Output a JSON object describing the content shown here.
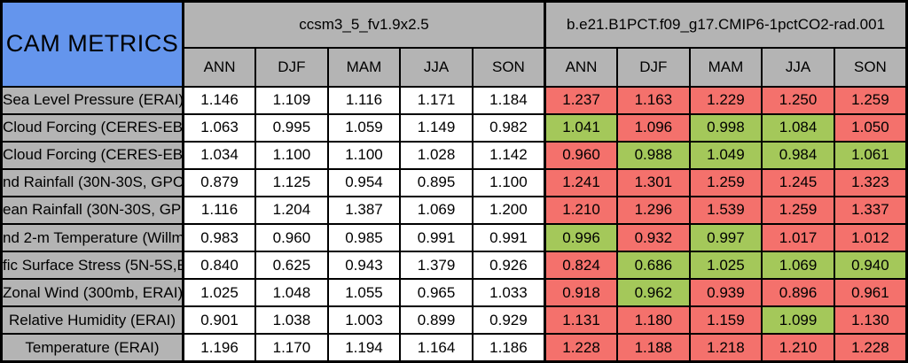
{
  "table": {
    "title": "CAM METRICS",
    "models": [
      {
        "name": "ccsm3_5_fv1.9x2.5"
      },
      {
        "name": "b.e21.B1PCT.f09_g17.CMIP6-1pctCO2-rad.001"
      }
    ],
    "seasons": [
      "ANN",
      "DJF",
      "MAM",
      "JJA",
      "SON"
    ],
    "rows": [
      {
        "label": "Sea Level Pressure (ERAI)",
        "control": [
          "1.146",
          "1.109",
          "1.116",
          "1.171",
          "1.184"
        ],
        "test": [
          "1.237",
          "1.163",
          "1.229",
          "1.250",
          "1.259"
        ],
        "test_colors": [
          "red",
          "red",
          "red",
          "red",
          "red"
        ]
      },
      {
        "label": "Cloud Forcing (CERES-EB",
        "control": [
          "1.063",
          "0.995",
          "1.059",
          "1.149",
          "0.982"
        ],
        "test": [
          "1.041",
          "1.096",
          "0.998",
          "1.084",
          "1.050"
        ],
        "test_colors": [
          "green",
          "red",
          "green",
          "green",
          "red"
        ]
      },
      {
        "label": "Cloud Forcing (CERES-EB",
        "control": [
          "1.034",
          "1.100",
          "1.100",
          "1.028",
          "1.142"
        ],
        "test": [
          "0.960",
          "0.988",
          "1.049",
          "0.984",
          "1.061"
        ],
        "test_colors": [
          "red",
          "green",
          "green",
          "green",
          "green"
        ]
      },
      {
        "label": "nd Rainfall (30N-30S, GPC",
        "control": [
          "0.879",
          "1.125",
          "0.954",
          "0.895",
          "1.100"
        ],
        "test": [
          "1.241",
          "1.301",
          "1.259",
          "1.245",
          "1.323"
        ],
        "test_colors": [
          "red",
          "red",
          "red",
          "red",
          "red"
        ]
      },
      {
        "label": "ean Rainfall (30N-30S, GPC",
        "control": [
          "1.116",
          "1.204",
          "1.387",
          "1.069",
          "1.200"
        ],
        "test": [
          "1.210",
          "1.296",
          "1.539",
          "1.259",
          "1.337"
        ],
        "test_colors": [
          "red",
          "red",
          "red",
          "red",
          "red"
        ]
      },
      {
        "label": "nd 2-m Temperature (Willmo",
        "control": [
          "0.983",
          "0.960",
          "0.985",
          "0.991",
          "0.991"
        ],
        "test": [
          "0.996",
          "0.932",
          "0.997",
          "1.017",
          "1.012"
        ],
        "test_colors": [
          "green",
          "red",
          "green",
          "red",
          "red"
        ]
      },
      {
        "label": "fic Surface Stress (5N-5S,E",
        "control": [
          "0.840",
          "0.625",
          "0.943",
          "1.379",
          "0.926"
        ],
        "test": [
          "0.824",
          "0.686",
          "1.025",
          "1.069",
          "0.940"
        ],
        "test_colors": [
          "red",
          "green",
          "green",
          "green",
          "green"
        ]
      },
      {
        "label": "Zonal Wind (300mb, ERAI)",
        "control": [
          "1.025",
          "1.048",
          "1.055",
          "0.965",
          "1.033"
        ],
        "test": [
          "0.918",
          "0.962",
          "0.939",
          "0.896",
          "0.961"
        ],
        "test_colors": [
          "red",
          "green",
          "red",
          "red",
          "red"
        ]
      },
      {
        "label": "Relative Humidity (ERAI)",
        "control": [
          "0.901",
          "1.038",
          "1.003",
          "0.899",
          "0.929"
        ],
        "test": [
          "1.131",
          "1.180",
          "1.159",
          "1.099",
          "1.130"
        ],
        "test_colors": [
          "red",
          "red",
          "red",
          "green",
          "red"
        ]
      },
      {
        "label": "Temperature (ERAI)",
        "control": [
          "1.196",
          "1.170",
          "1.194",
          "1.164",
          "1.186"
        ],
        "test": [
          "1.228",
          "1.188",
          "1.218",
          "1.210",
          "1.228"
        ],
        "test_colors": [
          "red",
          "red",
          "red",
          "red",
          "red"
        ]
      }
    ],
    "colors": {
      "title_bg": "#6495ed",
      "header_bg": "#b4b4b4",
      "value_bg": "#ffffff",
      "highlight_red": "#f4716c",
      "highlight_green": "#a4c85a",
      "border": "#000000"
    }
  },
  "chart_data": {
    "type": "table",
    "title": "CAM METRICS",
    "groups": [
      "ccsm3_5_fv1.9x2.5",
      "b.e21.B1PCT.f09_g17.CMIP6-1pctCO2-rad.001"
    ],
    "seasons": [
      "ANN",
      "DJF",
      "MAM",
      "JJA",
      "SON"
    ],
    "metrics": [
      "Sea Level Pressure (ERAI)",
      "Cloud Forcing (CERES-EB",
      "Cloud Forcing (CERES-EB",
      "nd Rainfall (30N-30S, GPC",
      "ean Rainfall (30N-30S, GPC",
      "nd 2-m Temperature (Willmo",
      "fic Surface Stress (5N-5S,E",
      "Zonal Wind (300mb, ERAI)",
      "Relative Humidity (ERAI)",
      "Temperature (ERAI)"
    ],
    "values_control": [
      [
        1.146,
        1.109,
        1.116,
        1.171,
        1.184
      ],
      [
        1.063,
        0.995,
        1.059,
        1.149,
        0.982
      ],
      [
        1.034,
        1.1,
        1.1,
        1.028,
        1.142
      ],
      [
        0.879,
        1.125,
        0.954,
        0.895,
        1.1
      ],
      [
        1.116,
        1.204,
        1.387,
        1.069,
        1.2
      ],
      [
        0.983,
        0.96,
        0.985,
        0.991,
        0.991
      ],
      [
        0.84,
        0.625,
        0.943,
        1.379,
        0.926
      ],
      [
        1.025,
        1.048,
        1.055,
        0.965,
        1.033
      ],
      [
        0.901,
        1.038,
        1.003,
        0.899,
        0.929
      ],
      [
        1.196,
        1.17,
        1.194,
        1.164,
        1.186
      ]
    ],
    "values_test": [
      [
        1.237,
        1.163,
        1.229,
        1.25,
        1.259
      ],
      [
        1.041,
        1.096,
        0.998,
        1.084,
        1.05
      ],
      [
        0.96,
        0.988,
        1.049,
        0.984,
        1.061
      ],
      [
        1.241,
        1.301,
        1.259,
        1.245,
        1.323
      ],
      [
        1.21,
        1.296,
        1.539,
        1.259,
        1.337
      ],
      [
        0.996,
        0.932,
        0.997,
        1.017,
        1.012
      ],
      [
        0.824,
        0.686,
        1.025,
        1.069,
        0.94
      ],
      [
        0.918,
        0.962,
        0.939,
        0.896,
        0.961
      ],
      [
        1.131,
        1.18,
        1.159,
        1.099,
        1.13
      ],
      [
        1.228,
        1.188,
        1.218,
        1.21,
        1.228
      ]
    ],
    "test_cell_colors": [
      [
        "red",
        "red",
        "red",
        "red",
        "red"
      ],
      [
        "green",
        "red",
        "green",
        "green",
        "red"
      ],
      [
        "red",
        "green",
        "green",
        "green",
        "green"
      ],
      [
        "red",
        "red",
        "red",
        "red",
        "red"
      ],
      [
        "red",
        "red",
        "red",
        "red",
        "red"
      ],
      [
        "green",
        "red",
        "green",
        "red",
        "red"
      ],
      [
        "red",
        "green",
        "green",
        "green",
        "green"
      ],
      [
        "red",
        "green",
        "red",
        "red",
        "red"
      ],
      [
        "red",
        "red",
        "red",
        "green",
        "red"
      ],
      [
        "red",
        "red",
        "red",
        "red",
        "red"
      ]
    ]
  }
}
